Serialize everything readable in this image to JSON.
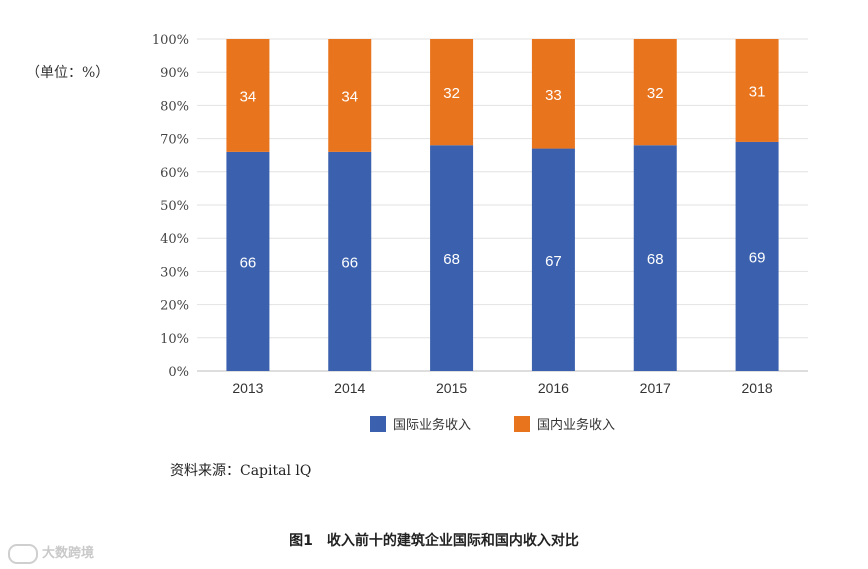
{
  "unit_label": "（单位：%）",
  "source": "资料来源：Capital lQ",
  "caption": "图1　收入前十的建筑企业国际和国内收入对比",
  "watermark": "大数跨境",
  "chart_data": {
    "type": "bar",
    "stacked": true,
    "categories": [
      "2013",
      "2014",
      "2015",
      "2016",
      "2017",
      "2018"
    ],
    "series": [
      {
        "name": "国际业务收入",
        "color": "#3b61ae",
        "values": [
          66,
          66,
          68,
          67,
          68,
          69
        ]
      },
      {
        "name": "国内业务收入",
        "color": "#e8741e",
        "values": [
          34,
          34,
          32,
          33,
          32,
          31
        ]
      }
    ],
    "yticks": [
      "0%",
      "10%",
      "20%",
      "30%",
      "40%",
      "50%",
      "60%",
      "70%",
      "80%",
      "90%",
      "100%"
    ],
    "ylim": [
      0,
      100
    ],
    "grid": true,
    "legend_position": "bottom"
  }
}
